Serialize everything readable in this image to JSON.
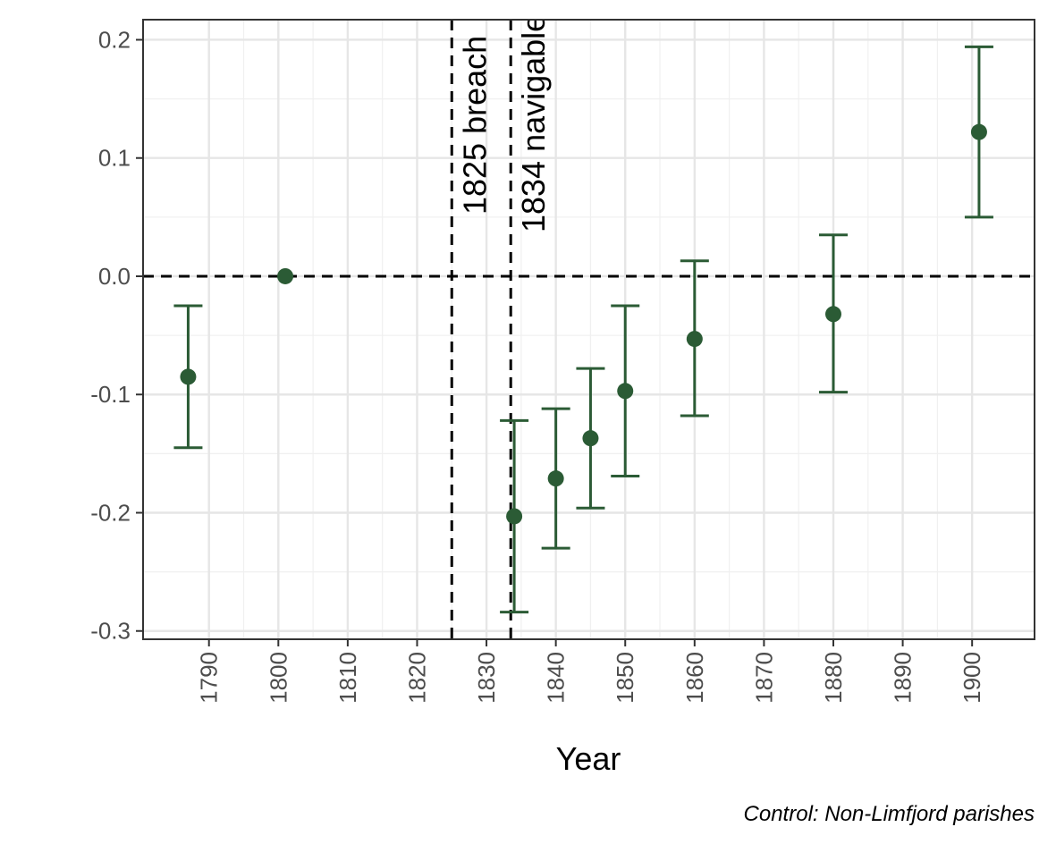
{
  "chart_data": {
    "type": "scatter",
    "title": "",
    "xlabel": "Year",
    "ylabel": "",
    "caption": "Control: Non-Limfjord parishes",
    "xlim": [
      1780.5,
      1909
    ],
    "ylim": [
      -0.307,
      0.217
    ],
    "x_ticks": [
      1790,
      1800,
      1810,
      1820,
      1830,
      1840,
      1850,
      1860,
      1870,
      1880,
      1890,
      1900
    ],
    "x_tick_labels": [
      "1790",
      "1800",
      "1810",
      "1820",
      "1830",
      "1840",
      "1850",
      "1860",
      "1870",
      "1880",
      "1890",
      "1900"
    ],
    "y_ticks": [
      -0.3,
      -0.2,
      -0.1,
      0.0,
      0.1,
      0.2
    ],
    "y_tick_labels": [
      "-0.3",
      "-0.2",
      "-0.1",
      "0.0",
      "0.1",
      "0.2"
    ],
    "grid": true,
    "color": "#2b5b35",
    "hline": 0.0,
    "vlines": [
      {
        "x": 1825,
        "label": "1825 breach"
      },
      {
        "x": 1833.5,
        "label": "1834 navigable"
      }
    ],
    "points": [
      {
        "x": 1787,
        "y": -0.085,
        "lower": -0.145,
        "upper": -0.025
      },
      {
        "x": 1801,
        "y": 0.0,
        "lower": null,
        "upper": null
      },
      {
        "x": 1834,
        "y": -0.203,
        "lower": -0.284,
        "upper": -0.122
      },
      {
        "x": 1840,
        "y": -0.171,
        "lower": -0.23,
        "upper": -0.112
      },
      {
        "x": 1845,
        "y": -0.137,
        "lower": -0.196,
        "upper": -0.078
      },
      {
        "x": 1850,
        "y": -0.097,
        "lower": -0.169,
        "upper": -0.025
      },
      {
        "x": 1860,
        "y": -0.053,
        "lower": -0.118,
        "upper": 0.013
      },
      {
        "x": 1880,
        "y": -0.032,
        "lower": -0.098,
        "upper": 0.035
      },
      {
        "x": 1901,
        "y": 0.122,
        "lower": 0.05,
        "upper": 0.194
      }
    ]
  }
}
